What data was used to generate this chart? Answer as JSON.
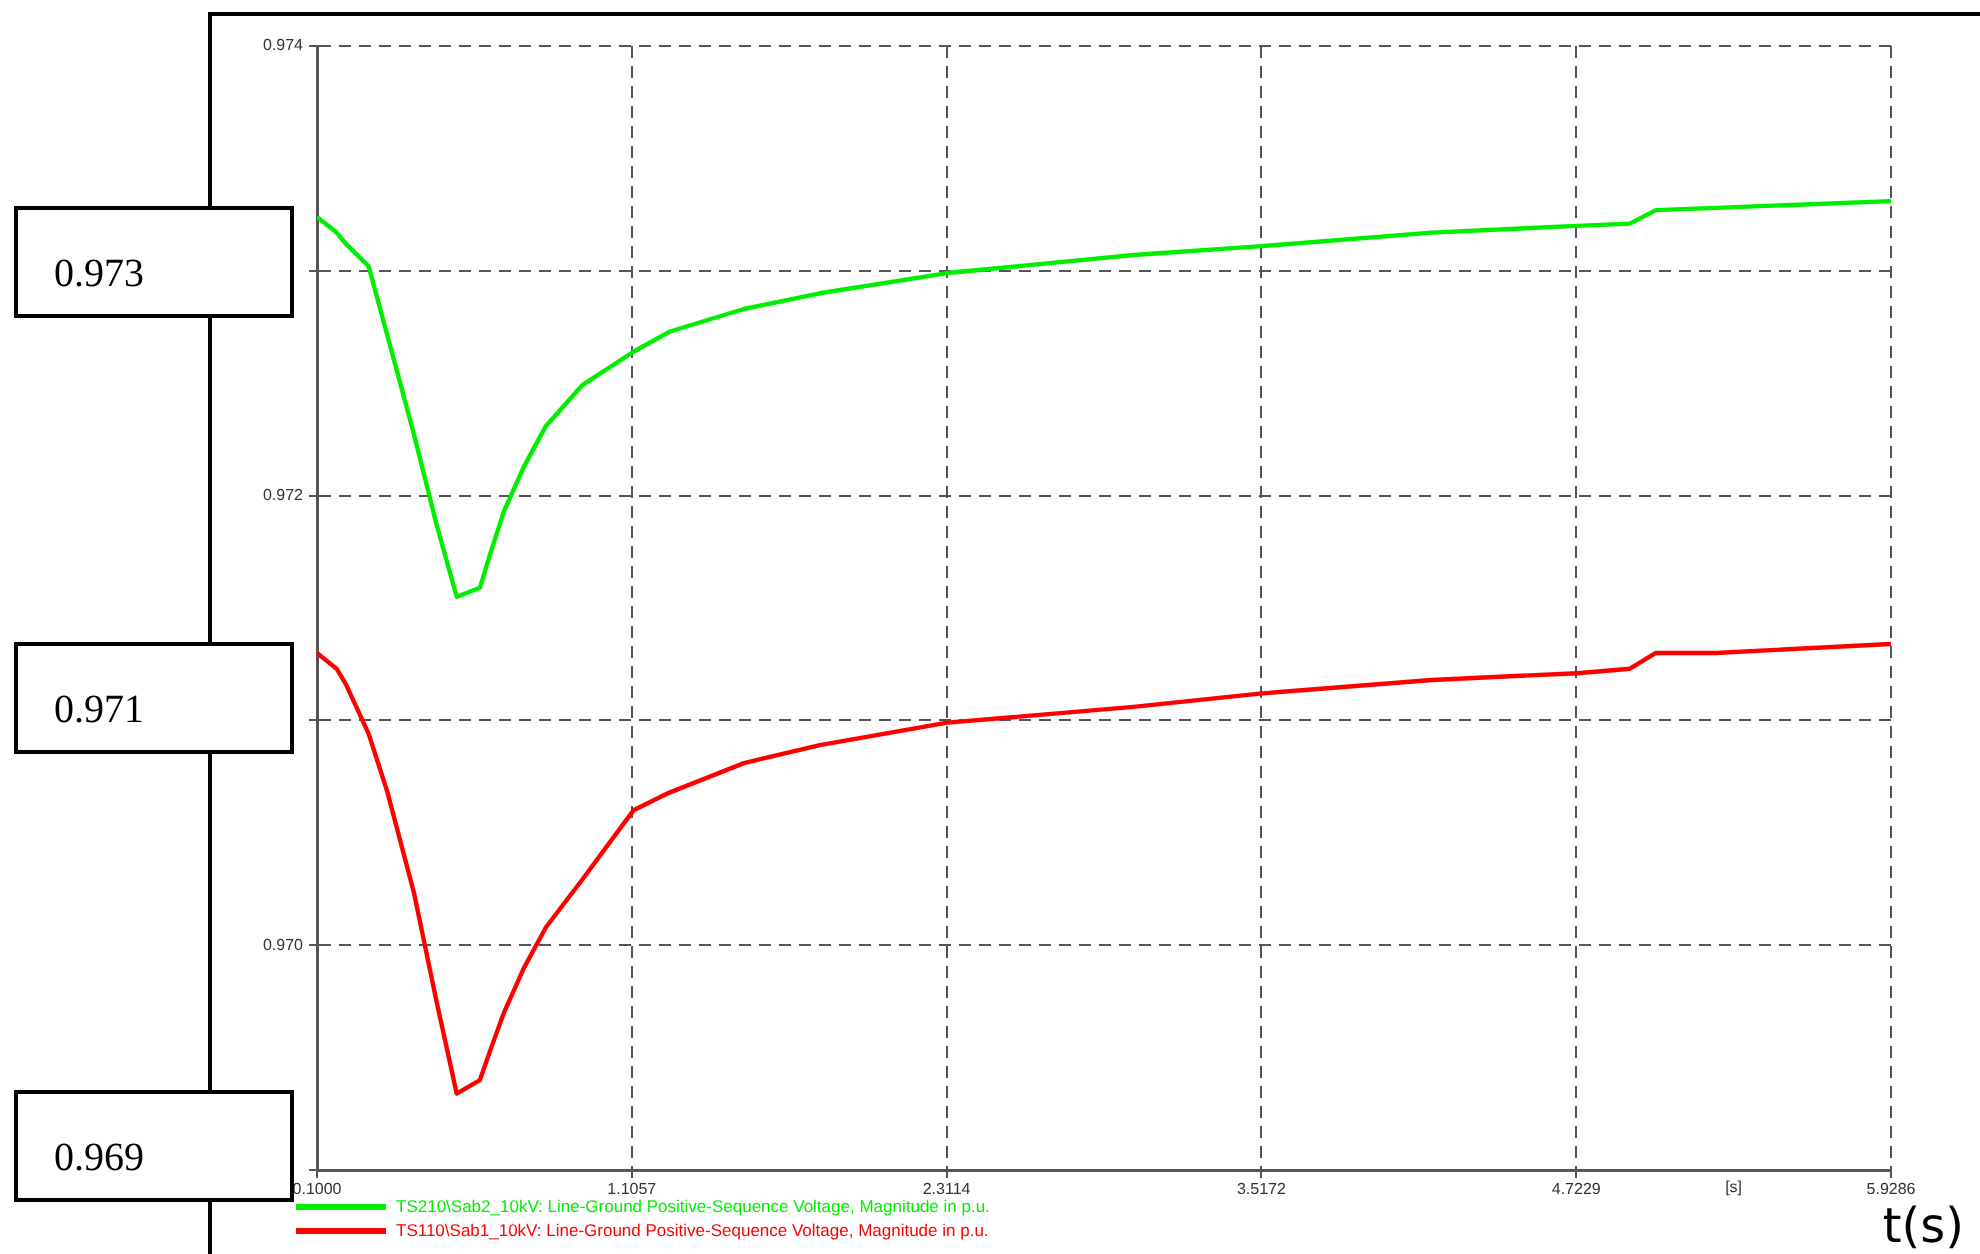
{
  "chart_data": {
    "type": "line",
    "xlabel": "[s]",
    "x": [
      -0.1,
      -0.025,
      0.011,
      0.098,
      0.17,
      0.272,
      0.356,
      0.435,
      0.524,
      0.563,
      0.616,
      0.693,
      0.777,
      0.915,
      1.112,
      1.252,
      1.535,
      1.826,
      2.314,
      3.027,
      3.519,
      4.17,
      4.727,
      4.929,
      5.028,
      5.258,
      5.9286
    ],
    "series": [
      {
        "name": "TS210\\Sab2_10kV: Line-Ground Positive-Sequence Voltage, Magnitude in p.u.",
        "color": "#00ee00",
        "values": [
          0.97324,
          0.97317,
          0.97312,
          0.97302,
          0.97271,
          0.97227,
          0.97188,
          0.97155,
          0.97159,
          0.97174,
          0.97193,
          0.97213,
          0.97231,
          0.97249,
          0.97264,
          0.97273,
          0.97283,
          0.9729,
          0.97299,
          0.97307,
          0.97311,
          0.97317,
          0.9732,
          0.97321,
          0.97327,
          0.97328,
          0.97331
        ]
      },
      {
        "name": "TS110\\Sab1_10kV: Line-Ground Positive-Sequence Voltage, Magnitude in p.u.",
        "color": "#ff0000",
        "values": [
          0.9713,
          0.97123,
          0.97116,
          0.97094,
          0.97068,
          0.97023,
          0.96976,
          0.96934,
          0.9694,
          0.96953,
          0.9697,
          0.9699,
          0.97008,
          0.97029,
          0.9706,
          0.97068,
          0.97081,
          0.97089,
          0.97099,
          0.97106,
          0.97112,
          0.97118,
          0.97121,
          0.97123,
          0.9713,
          0.9713,
          0.97134
        ]
      }
    ],
    "xlim": [
      -0.1,
      5.9286
    ],
    "xticks": [
      {
        "value": -0.1,
        "label": "0.1000"
      },
      1.1057,
      2.3114,
      3.5172,
      4.7229,
      5.9286
    ],
    "ylim": [
      0.969,
      0.974
    ],
    "yticks": [
      {
        "value": 0.969,
        "label": null
      },
      {
        "value": 0.97,
        "label": "0.970"
      },
      {
        "value": 0.971,
        "label": null
      },
      0.972,
      {
        "value": 0.973,
        "label": null
      },
      0.974
    ],
    "grid": true,
    "legend": "bottom left",
    "marker": "none",
    "line_style": "solid",
    "annotations": [
      "0.973",
      "0.971",
      "0.969",
      "t(s)"
    ]
  }
}
